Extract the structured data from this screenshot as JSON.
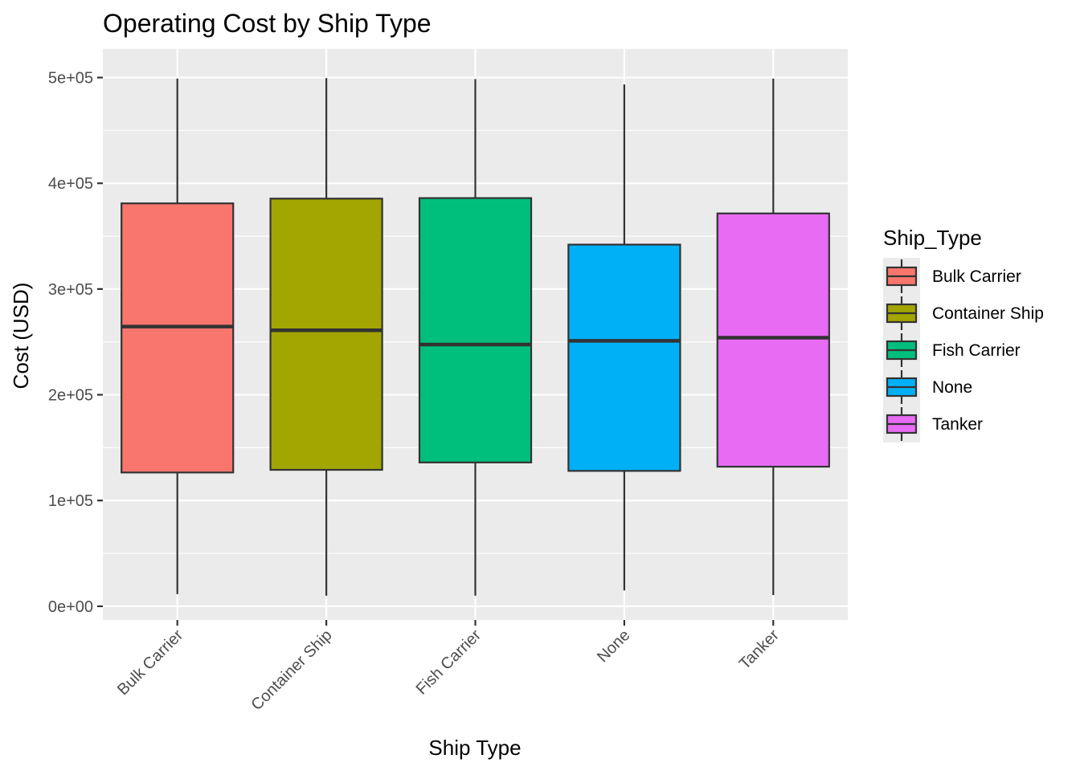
{
  "chart_data": {
    "type": "boxplot",
    "title": "Operating Cost by Ship Type",
    "xlabel": "Ship Type",
    "ylabel": "Cost (USD)",
    "ylim": [
      -13000,
      527000
    ],
    "y_ticks": [
      {
        "value": 0,
        "label": "0e+00"
      },
      {
        "value": 100000,
        "label": "1e+05"
      },
      {
        "value": 200000,
        "label": "2e+05"
      },
      {
        "value": 300000,
        "label": "3e+05"
      },
      {
        "value": 400000,
        "label": "4e+05"
      },
      {
        "value": 500000,
        "label": "5e+05"
      }
    ],
    "categories": [
      "Bulk Carrier",
      "Container Ship",
      "Fish Carrier",
      "None",
      "Tanker"
    ],
    "boxes": [
      {
        "category": "Bulk Carrier",
        "min": 11500,
        "q1": 126500,
        "median": 264500,
        "q3": 381000,
        "max": 499000,
        "color": "#F8766D"
      },
      {
        "category": "Container Ship",
        "min": 10000,
        "q1": 129000,
        "median": 261000,
        "q3": 385500,
        "max": 499500,
        "color": "#A3A500"
      },
      {
        "category": "Fish Carrier",
        "min": 10000,
        "q1": 136000,
        "median": 247500,
        "q3": 386000,
        "max": 498500,
        "color": "#00BF7D"
      },
      {
        "category": "None",
        "min": 15000,
        "q1": 128000,
        "median": 251000,
        "q3": 342000,
        "max": 493500,
        "color": "#00B0F6"
      },
      {
        "category": "Tanker",
        "min": 10500,
        "q1": 132000,
        "median": 254000,
        "q3": 371500,
        "max": 499000,
        "color": "#E76BF3"
      }
    ],
    "grid": true,
    "legend": {
      "title": "Ship_Type",
      "position": "right",
      "items": [
        "Bulk Carrier",
        "Container Ship",
        "Fish Carrier",
        "None",
        "Tanker"
      ]
    },
    "colors": {
      "panel_bg": "#EBEBEB",
      "grid": "#FFFFFF",
      "line": "#333333",
      "text": "#4D4D4D",
      "title": "#000000"
    }
  }
}
